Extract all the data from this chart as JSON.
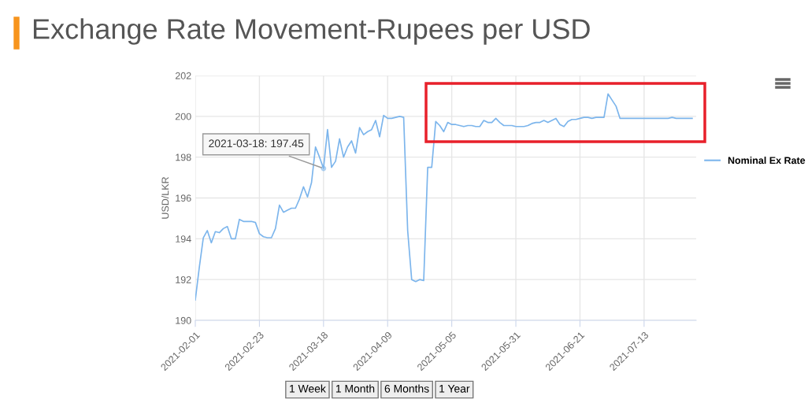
{
  "chart_data": {
    "type": "line",
    "title": "Exchange Rate Movement-Rupees per USD",
    "ylabel": "USD/LKR",
    "categories": [
      "2021-02-01",
      null,
      null,
      null,
      null,
      null,
      null,
      null,
      null,
      null,
      null,
      null,
      null,
      null,
      null,
      null,
      "2021-02-23",
      null,
      null,
      null,
      null,
      null,
      null,
      null,
      null,
      null,
      null,
      null,
      null,
      null,
      null,
      null,
      "2021-03-18",
      null,
      null,
      null,
      null,
      null,
      null,
      null,
      null,
      null,
      null,
      null,
      null,
      null,
      null,
      null,
      "2021-04-09",
      null,
      null,
      null,
      null,
      null,
      null,
      null,
      null,
      null,
      null,
      null,
      null,
      null,
      null,
      null,
      "2021-05-05",
      null,
      null,
      null,
      null,
      null,
      null,
      null,
      null,
      null,
      null,
      null,
      null,
      null,
      null,
      null,
      "2021-05-31",
      null,
      null,
      null,
      null,
      null,
      null,
      null,
      null,
      null,
      null,
      null,
      null,
      null,
      null,
      null,
      "2021-06-21",
      null,
      null,
      null,
      null,
      null,
      null,
      null,
      null,
      null,
      null,
      null,
      null,
      null,
      null,
      null,
      "2021-07-13",
      null,
      null,
      null,
      null,
      null,
      null,
      null,
      null,
      null,
      null,
      null,
      null
    ],
    "series": [
      {
        "name": "Nominal Ex Rate",
        "color": "#7cb5ec",
        "values": [
          191.0,
          192.6,
          194.05,
          194.4,
          193.8,
          194.35,
          194.3,
          194.5,
          194.6,
          194.0,
          194.0,
          194.95,
          194.85,
          194.85,
          194.85,
          194.8,
          194.25,
          194.1,
          194.05,
          194.05,
          194.5,
          195.65,
          195.3,
          195.4,
          195.5,
          195.5,
          195.95,
          196.55,
          196.05,
          196.75,
          198.5,
          198.0,
          197.45,
          199.35,
          197.5,
          197.8,
          198.9,
          198.0,
          198.5,
          198.8,
          198.2,
          199.45,
          199.1,
          199.25,
          199.35,
          199.8,
          199.0,
          200.05,
          199.9,
          199.9,
          199.95,
          200.0,
          199.95,
          194.4,
          192.0,
          191.9,
          192.0,
          191.95,
          197.5,
          197.5,
          199.75,
          199.55,
          199.25,
          199.7,
          199.6,
          199.6,
          199.55,
          199.5,
          199.55,
          199.55,
          199.5,
          199.5,
          199.8,
          199.7,
          199.7,
          199.9,
          199.7,
          199.55,
          199.55,
          199.55,
          199.5,
          199.5,
          199.5,
          199.55,
          199.65,
          199.7,
          199.7,
          199.8,
          199.7,
          199.8,
          199.9,
          199.6,
          199.5,
          199.75,
          199.85,
          199.85,
          199.9,
          199.95,
          199.95,
          199.9,
          199.95,
          199.95,
          199.95,
          201.1,
          200.8,
          200.5,
          199.9,
          199.9,
          199.9,
          199.9,
          199.9,
          199.9,
          199.9,
          199.9,
          199.9,
          199.9,
          199.9,
          199.9,
          199.9,
          199.95,
          199.9,
          199.9,
          199.9,
          199.9,
          199.9
        ]
      }
    ],
    "ylim": [
      190,
      202
    ],
    "yticks": [
      190,
      192,
      194,
      196,
      198,
      200,
      202
    ],
    "grid": true,
    "legend": "right",
    "marker": "none",
    "line_style": "solid",
    "annotations": [
      {
        "text": "2021-03-18: 197.45",
        "x": "2021-03-18",
        "y": 197.45
      },
      "1 Week",
      "1 Month",
      "6 Months",
      "1 Year"
    ]
  }
}
